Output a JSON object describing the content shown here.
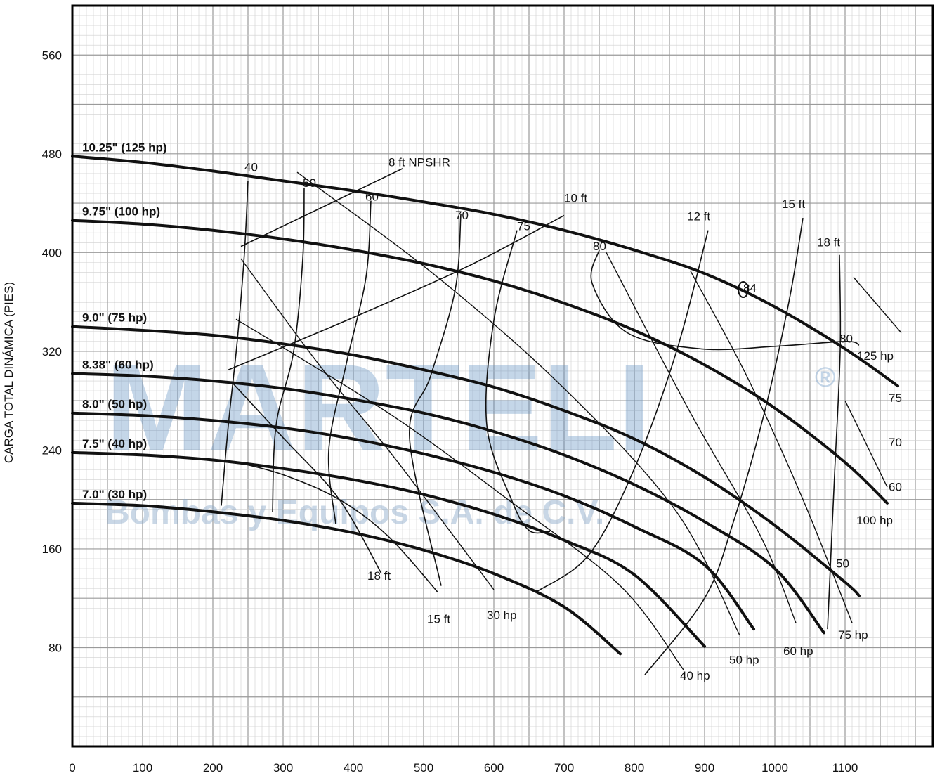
{
  "chart_data": {
    "type": "line",
    "title": "",
    "xlabel": "",
    "ylabel": "CARGA TOTAL DINÁMICA (PIES)",
    "xlim": [
      0,
      1200
    ],
    "ylim": [
      0,
      600
    ],
    "x_ticks": [
      "0",
      "100",
      "200",
      "300",
      "400",
      "500",
      "600",
      "700",
      "800",
      "900",
      "1000",
      "1100"
    ],
    "y_ticks": [
      "80",
      "160",
      "240",
      "320",
      "400",
      "480",
      "560"
    ],
    "y_tick_values": [
      80,
      160,
      240,
      320,
      400,
      480,
      560
    ],
    "grid": true,
    "watermark": {
      "line1": "MARTELI",
      "reg": "®",
      "line2": "Bombas y Equipos S.A. de C.V."
    },
    "impeller_curves": [
      {
        "label_a": "10.25\" (125 hp)",
        "label_b": "",
        "x": [
          0,
          100,
          200,
          300,
          400,
          500,
          600,
          700,
          800,
          900,
          1000,
          1100,
          1175
        ],
        "y": [
          478,
          473,
          466,
          458,
          450,
          441,
          431,
          418,
          402,
          383,
          356,
          322,
          292
        ]
      },
      {
        "label_a": "9.75\" (100 hp)",
        "label_b": "",
        "x": [
          0,
          100,
          200,
          300,
          400,
          500,
          600,
          700,
          800,
          900,
          1000,
          1100,
          1160
        ],
        "y": [
          426,
          423,
          418,
          411,
          402,
          391,
          377,
          359,
          337,
          309,
          274,
          230,
          197
        ]
      },
      {
        "label_a": "9.0\" (75 hp)",
        "label_b": "",
        "x": [
          0,
          100,
          200,
          300,
          400,
          500,
          600,
          700,
          800,
          900,
          1000,
          1100,
          1120
        ],
        "y": [
          340,
          337,
          333,
          326,
          317,
          305,
          291,
          272,
          249,
          218,
          179,
          133,
          122
        ]
      },
      {
        "label_a": "8.38\"",
        "label_b": " (60 hp)",
        "x": [
          0,
          100,
          200,
          300,
          400,
          500,
          600,
          700,
          800,
          900,
          1000,
          1070
        ],
        "y": [
          302,
          300,
          296,
          290,
          281,
          270,
          255,
          236,
          212,
          182,
          144,
          92
        ]
      },
      {
        "label_a": "8.0\"",
        "label_b": " (50 hp)",
        "x": [
          0,
          100,
          200,
          300,
          400,
          500,
          600,
          700,
          800,
          900,
          970
        ],
        "y": [
          270,
          268,
          264,
          258,
          249,
          237,
          222,
          203,
          178,
          147,
          95
        ]
      },
      {
        "label_a": "7.5\"",
        "label_b": " (40 hp)",
        "x": [
          0,
          100,
          200,
          300,
          400,
          500,
          600,
          700,
          800,
          900
        ],
        "y": [
          238,
          236,
          232,
          225,
          216,
          204,
          188,
          167,
          139,
          81
        ]
      },
      {
        "label_a": "7.0\" (30 hp)",
        "label_b": "",
        "x": [
          0,
          100,
          200,
          300,
          400,
          500,
          600,
          700,
          780
        ],
        "y": [
          197,
          195,
          190,
          183,
          173,
          159,
          140,
          113,
          75
        ]
      }
    ],
    "efficiency_curves": [
      {
        "label": "40",
        "label_at": [
          245,
          466
        ],
        "x": [
          250,
          245,
          235,
          222,
          212
        ],
        "y": [
          458,
          400,
          330,
          260,
          195
        ]
      },
      {
        "label": "50",
        "label_at": [
          328,
          453
        ],
        "x": [
          330,
          328,
          315,
          290,
          285
        ],
        "y": [
          452,
          395,
          320,
          260,
          190
        ]
      },
      {
        "label": "60",
        "label_at": [
          417,
          442
        ],
        "x": [
          425,
          418,
          390,
          365,
          375
        ],
        "y": [
          442,
          380,
          310,
          240,
          180
        ]
      },
      {
        "label": "70",
        "label_at": [
          545,
          427
        ],
        "x": [
          553,
          545,
          510,
          480,
          525
        ],
        "y": [
          431,
          370,
          300,
          250,
          130
        ]
      },
      {
        "label": "75",
        "label_at": [
          633,
          418
        ],
        "x": [
          633,
          600,
          590,
          625,
          650,
          680
        ],
        "y": [
          418,
          345,
          260,
          200,
          175,
          174
        ]
      },
      {
        "label": "80",
        "label_at": [
          741,
          402
        ],
        "x": [
          750,
          740,
          790,
          895,
          1000,
          1100,
          1120
        ],
        "y": [
          402,
          375,
          335,
          322,
          324,
          328,
          325
        ]
      },
      {
        "label": "84",
        "label_at": [
          955,
          368
        ],
        "x": [
          955,
          955,
          955
        ],
        "y": [
          370,
          370,
          370
        ]
      }
    ],
    "npshr_curves": [
      {
        "label": "8 ft NPSHR",
        "label_at": [
          450,
          470
        ],
        "x": [
          240,
          470
        ],
        "y": [
          405,
          468
        ]
      },
      {
        "label": "10 ft",
        "label_at": [
          700,
          441
        ],
        "x": [
          222,
          390,
          560,
          700
        ],
        "y": [
          305,
          345,
          388,
          430
        ]
      },
      {
        "label": "12 ft",
        "label_at": [
          875,
          426
        ],
        "x": [
          905,
          860,
          800,
          735,
          660
        ],
        "y": [
          418,
          320,
          225,
          155,
          125
        ]
      },
      {
        "label": "15 ft",
        "label_at": [
          1010,
          436
        ],
        "x": [
          1040,
          1020,
          985,
          940,
          900,
          815
        ],
        "y": [
          428,
          360,
          270,
          180,
          120,
          58
        ]
      },
      {
        "label": "18 ft",
        "label_at": [
          1060,
          405
        ],
        "x": [
          1092,
          1093,
          1085,
          1075
        ],
        "y": [
          398,
          320,
          220,
          95
        ]
      }
    ],
    "npshr_bottom_curves": [
      {
        "label": "18 ft",
        "label_at": [
          420,
          135
        ],
        "x": [
          227,
          300,
          380,
          440
        ],
        "y": [
          295,
          250,
          200,
          140
        ]
      },
      {
        "label": "15 ft",
        "label_at": [
          505,
          100
        ],
        "x": [
          235,
          300,
          380,
          450,
          520
        ],
        "y": [
          230,
          220,
          200,
          170,
          125
        ]
      }
    ],
    "hp_lines": [
      {
        "label": "30 hp",
        "label_at": [
          590,
          103
        ],
        "x": [
          240,
          350,
          450,
          530,
          600
        ],
        "y": [
          395,
          310,
          240,
          180,
          127
        ]
      },
      {
        "label": "40 hp",
        "label_at": [
          865,
          54
        ],
        "x": [
          233,
          450,
          620,
          780,
          870
        ],
        "y": [
          346,
          270,
          200,
          130,
          62
        ]
      },
      {
        "label": "50 hp",
        "label_at": [
          935,
          67
        ],
        "x": [
          320,
          520,
          700,
          860,
          950
        ],
        "y": [
          465,
          380,
          290,
          190,
          90
        ]
      },
      {
        "label": "60 hp",
        "label_at": [
          1012,
          74
        ],
        "x": [
          760,
          880,
          980,
          1030
        ],
        "y": [
          400,
          270,
          170,
          100
        ]
      },
      {
        "label": "75 hp",
        "label_at": [
          1090,
          87
        ],
        "x": [
          880,
          960,
          1040,
          1110
        ],
        "y": [
          385,
          300,
          200,
          100
        ]
      },
      {
        "label": "100 hp",
        "label_at": [
          1116,
          180
        ],
        "x": [
          1100,
          1160
        ],
        "y": [
          280,
          210
        ]
      },
      {
        "label": "125 hp",
        "label_at": [
          1117,
          313
        ],
        "x": [
          1112,
          1180
        ],
        "y": [
          380,
          335
        ]
      }
    ],
    "edge_labels": [
      {
        "label": "80",
        "at": [
          1092,
          327
        ]
      },
      {
        "label": "75",
        "at": [
          1162,
          279
        ]
      },
      {
        "label": "70",
        "at": [
          1162,
          243
        ]
      },
      {
        "label": "60",
        "at": [
          1162,
          207
        ]
      },
      {
        "label": "50",
        "at": [
          1087,
          145
        ]
      }
    ]
  }
}
